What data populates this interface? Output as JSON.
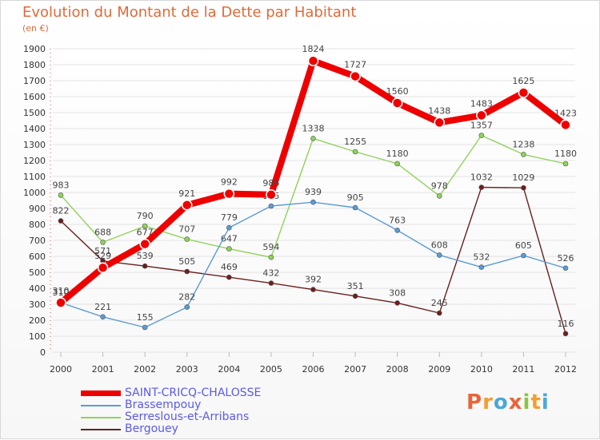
{
  "title": "Evolution du Montant de la Dette par Habitant",
  "unit": "(en €)",
  "logo_text": "Proxiti",
  "chart_data": {
    "type": "line",
    "title": "Evolution du Montant de la Dette par Habitant",
    "subtitle": "(en €)",
    "x": [
      "2000",
      "2001",
      "2002",
      "2003",
      "2004",
      "2005",
      "2006",
      "2007",
      "2008",
      "2009",
      "2010",
      "2011",
      "2012"
    ],
    "ylim": [
      0,
      1900
    ],
    "yticks": [
      "0",
      "100",
      "200",
      "300",
      "400",
      "500",
      "600",
      "700",
      "800",
      "900",
      "1000",
      "1100",
      "1200",
      "1300",
      "1400",
      "1500",
      "1600",
      "1700",
      "1800",
      "1900"
    ],
    "grid": true,
    "legend_position": "bottom-left",
    "series": [
      {
        "name": "SAINT-CRICQ-CHALOSSE",
        "color": "#ee0000",
        "values": [
          310,
          529,
          677,
          921,
          992,
          986,
          1824,
          1727,
          1560,
          1438,
          1483,
          1625,
          1423
        ],
        "labels": [
          "310",
          "529",
          "677",
          "921",
          "992",
          "986",
          "1824",
          "1727",
          "1560",
          "1438",
          "1483",
          "1625",
          "1423"
        ]
      },
      {
        "name": "Brassempouy",
        "color": "#5b9bd5",
        "values": [
          310,
          221,
          155,
          282,
          779,
          915,
          939,
          905,
          763,
          608,
          532,
          605,
          526
        ],
        "labels": [
          "310",
          "221",
          "155",
          "282",
          "779",
          "915",
          "939",
          "905",
          "763",
          "608",
          "532",
          "605",
          "526"
        ]
      },
      {
        "name": "Serreslous-et-Arribans",
        "color": "#8fd35a",
        "values": [
          983,
          688,
          790,
          707,
          647,
          594,
          1338,
          1255,
          1180,
          978,
          1357,
          1238,
          1180
        ],
        "labels": [
          "983",
          "688",
          "790",
          "707",
          "647",
          "594",
          "1338",
          "1255",
          "1180",
          "978",
          "1357",
          "1238",
          "1180"
        ]
      },
      {
        "name": "Bergouey",
        "color": "#6b1f1f",
        "values": [
          822,
          571,
          539,
          505,
          469,
          432,
          392,
          351,
          308,
          245,
          1032,
          1029,
          116
        ],
        "labels": [
          "822",
          "571",
          "539",
          "505",
          "469",
          "432",
          "392",
          "351",
          "308",
          "245",
          "1032",
          "1029",
          "116"
        ]
      }
    ]
  }
}
